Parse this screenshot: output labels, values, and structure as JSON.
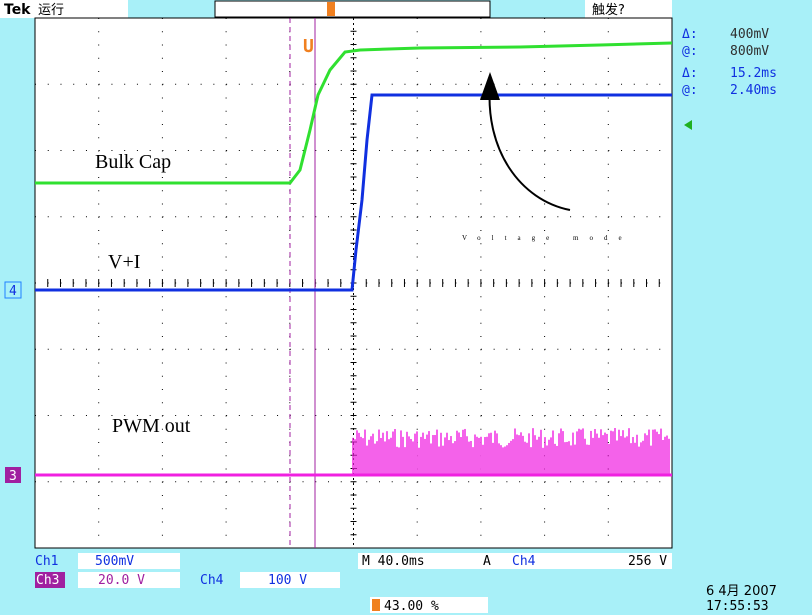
{
  "header": {
    "brand": "Tek",
    "status": "运行",
    "trigger_status": "触发?"
  },
  "cursor_readout": [
    {
      "symbol": "Δ:",
      "value": "400mV"
    },
    {
      "symbol": "@:",
      "value": "800mV"
    },
    {
      "symbol": "Δ:",
      "value": "15.2ms"
    },
    {
      "symbol": "@:",
      "value": "2.40ms"
    }
  ],
  "trace_labels": {
    "bulk_cap": "Bulk Cap",
    "v_plus_i": "V+I",
    "pwm_out": "PWM out",
    "voltage_mode": "Voltage mode"
  },
  "channel_markers": [
    "4",
    "3"
  ],
  "footer": {
    "ch1": "Ch1",
    "ch1_scale": "500mV",
    "ch3": "Ch3",
    "ch3_scale": "20.0 V",
    "ch4": "Ch4",
    "ch4_scale": "100 V",
    "timebase": "M 40.0ms",
    "trigger_label": "A",
    "trigger_source": "Ch4",
    "trigger_level": "256 V",
    "trigger_position": "43.00 %",
    "date": "6 4月 2007",
    "time": "17:55:53"
  }
}
